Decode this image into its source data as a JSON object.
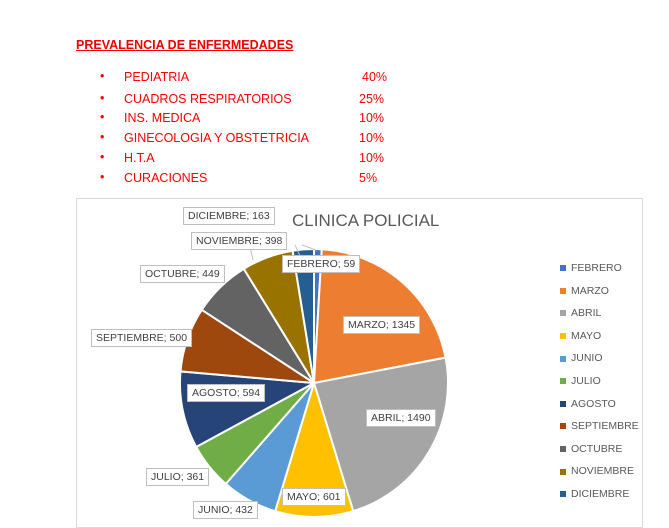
{
  "heading": "PREVALENCIA DE ENFERMEDADES",
  "bullet": "•",
  "items": [
    {
      "name": "PEDIATRIA",
      "pct": "40%"
    },
    {
      "name": "CUADROS RESPIRATORIOS",
      "pct": "25%"
    },
    {
      "name": "INS. MEDICA",
      "pct": "10%"
    },
    {
      "name": "GINECOLOGIA Y OBSTETRICIA",
      "pct": "10%"
    },
    {
      "name": "H.T.A",
      "pct": "10%"
    },
    {
      "name": "CURACIONES",
      "pct": "5%"
    }
  ],
  "chart_data": {
    "type": "pie",
    "title": "CLINICA POLICIAL",
    "categories": [
      "FEBRERO",
      "MARZO",
      "ABRIL",
      "MAYO",
      "JUNIO",
      "JULIO",
      "AGOSTO",
      "SEPTIEMBRE",
      "OCTUBRE",
      "NOVIEMBRE",
      "DICIEMBRE"
    ],
    "values": [
      59,
      1345,
      1490,
      601,
      432,
      361,
      594,
      500,
      449,
      398,
      163
    ],
    "colors": [
      "#4472c4",
      "#ed7d31",
      "#a5a5a5",
      "#ffc000",
      "#5b9bd5",
      "#70ad47",
      "#264478",
      "#9e480e",
      "#636363",
      "#997300",
      "#255e91"
    ],
    "data_labels": [
      "FEBRERO; 59",
      "MARZO; 1345",
      "ABRIL; 1490",
      "MAYO; 601",
      "JUNIO; 432",
      "JULIO; 361",
      "AGOSTO; 594",
      "SEPTIEMBRE; 500",
      "OCTUBRE; 449",
      "NOVIEMBRE; 398",
      "DICIEMBRE; 163"
    ],
    "legend_position": "right"
  }
}
